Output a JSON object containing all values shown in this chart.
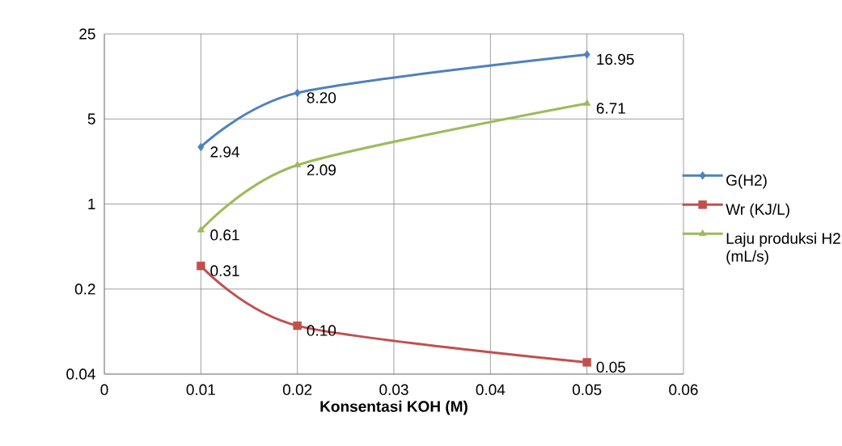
{
  "chart_data": {
    "type": "line",
    "xlabel": "Konsentasi KOH (M)",
    "log": "y",
    "xlim": [
      0,
      0.06
    ],
    "xticks": [
      0,
      0.01,
      0.02,
      0.03,
      0.04,
      0.05,
      0.06
    ],
    "ylim": [
      0.04,
      25
    ],
    "yticks": [
      0.04,
      0.2,
      1,
      5,
      25
    ],
    "grid": true,
    "legend": "right",
    "series": [
      {
        "name": "G(H2)",
        "color": "#4f81bd",
        "marker": "diamond",
        "x": [
          0.01,
          0.02,
          0.05
        ],
        "values": [
          2.94,
          8.2,
          16.95
        ],
        "value_labels": [
          "2.94",
          "8.20",
          "16.95"
        ]
      },
      {
        "name": "Wr (KJ/L)",
        "color": "#c0504d",
        "marker": "square",
        "x": [
          0.01,
          0.02,
          0.05
        ],
        "values": [
          0.31,
          0.1,
          0.05
        ],
        "value_labels": [
          "0.31",
          "0.10",
          "0.05"
        ]
      },
      {
        "name": "Laju produksi H2 (mL/s)",
        "color": "#9bbb59",
        "marker": "triangle",
        "x": [
          0.01,
          0.02,
          0.05
        ],
        "values": [
          0.61,
          2.09,
          6.71
        ],
        "value_labels": [
          "0.61",
          "2.09",
          "6.71"
        ]
      }
    ]
  }
}
